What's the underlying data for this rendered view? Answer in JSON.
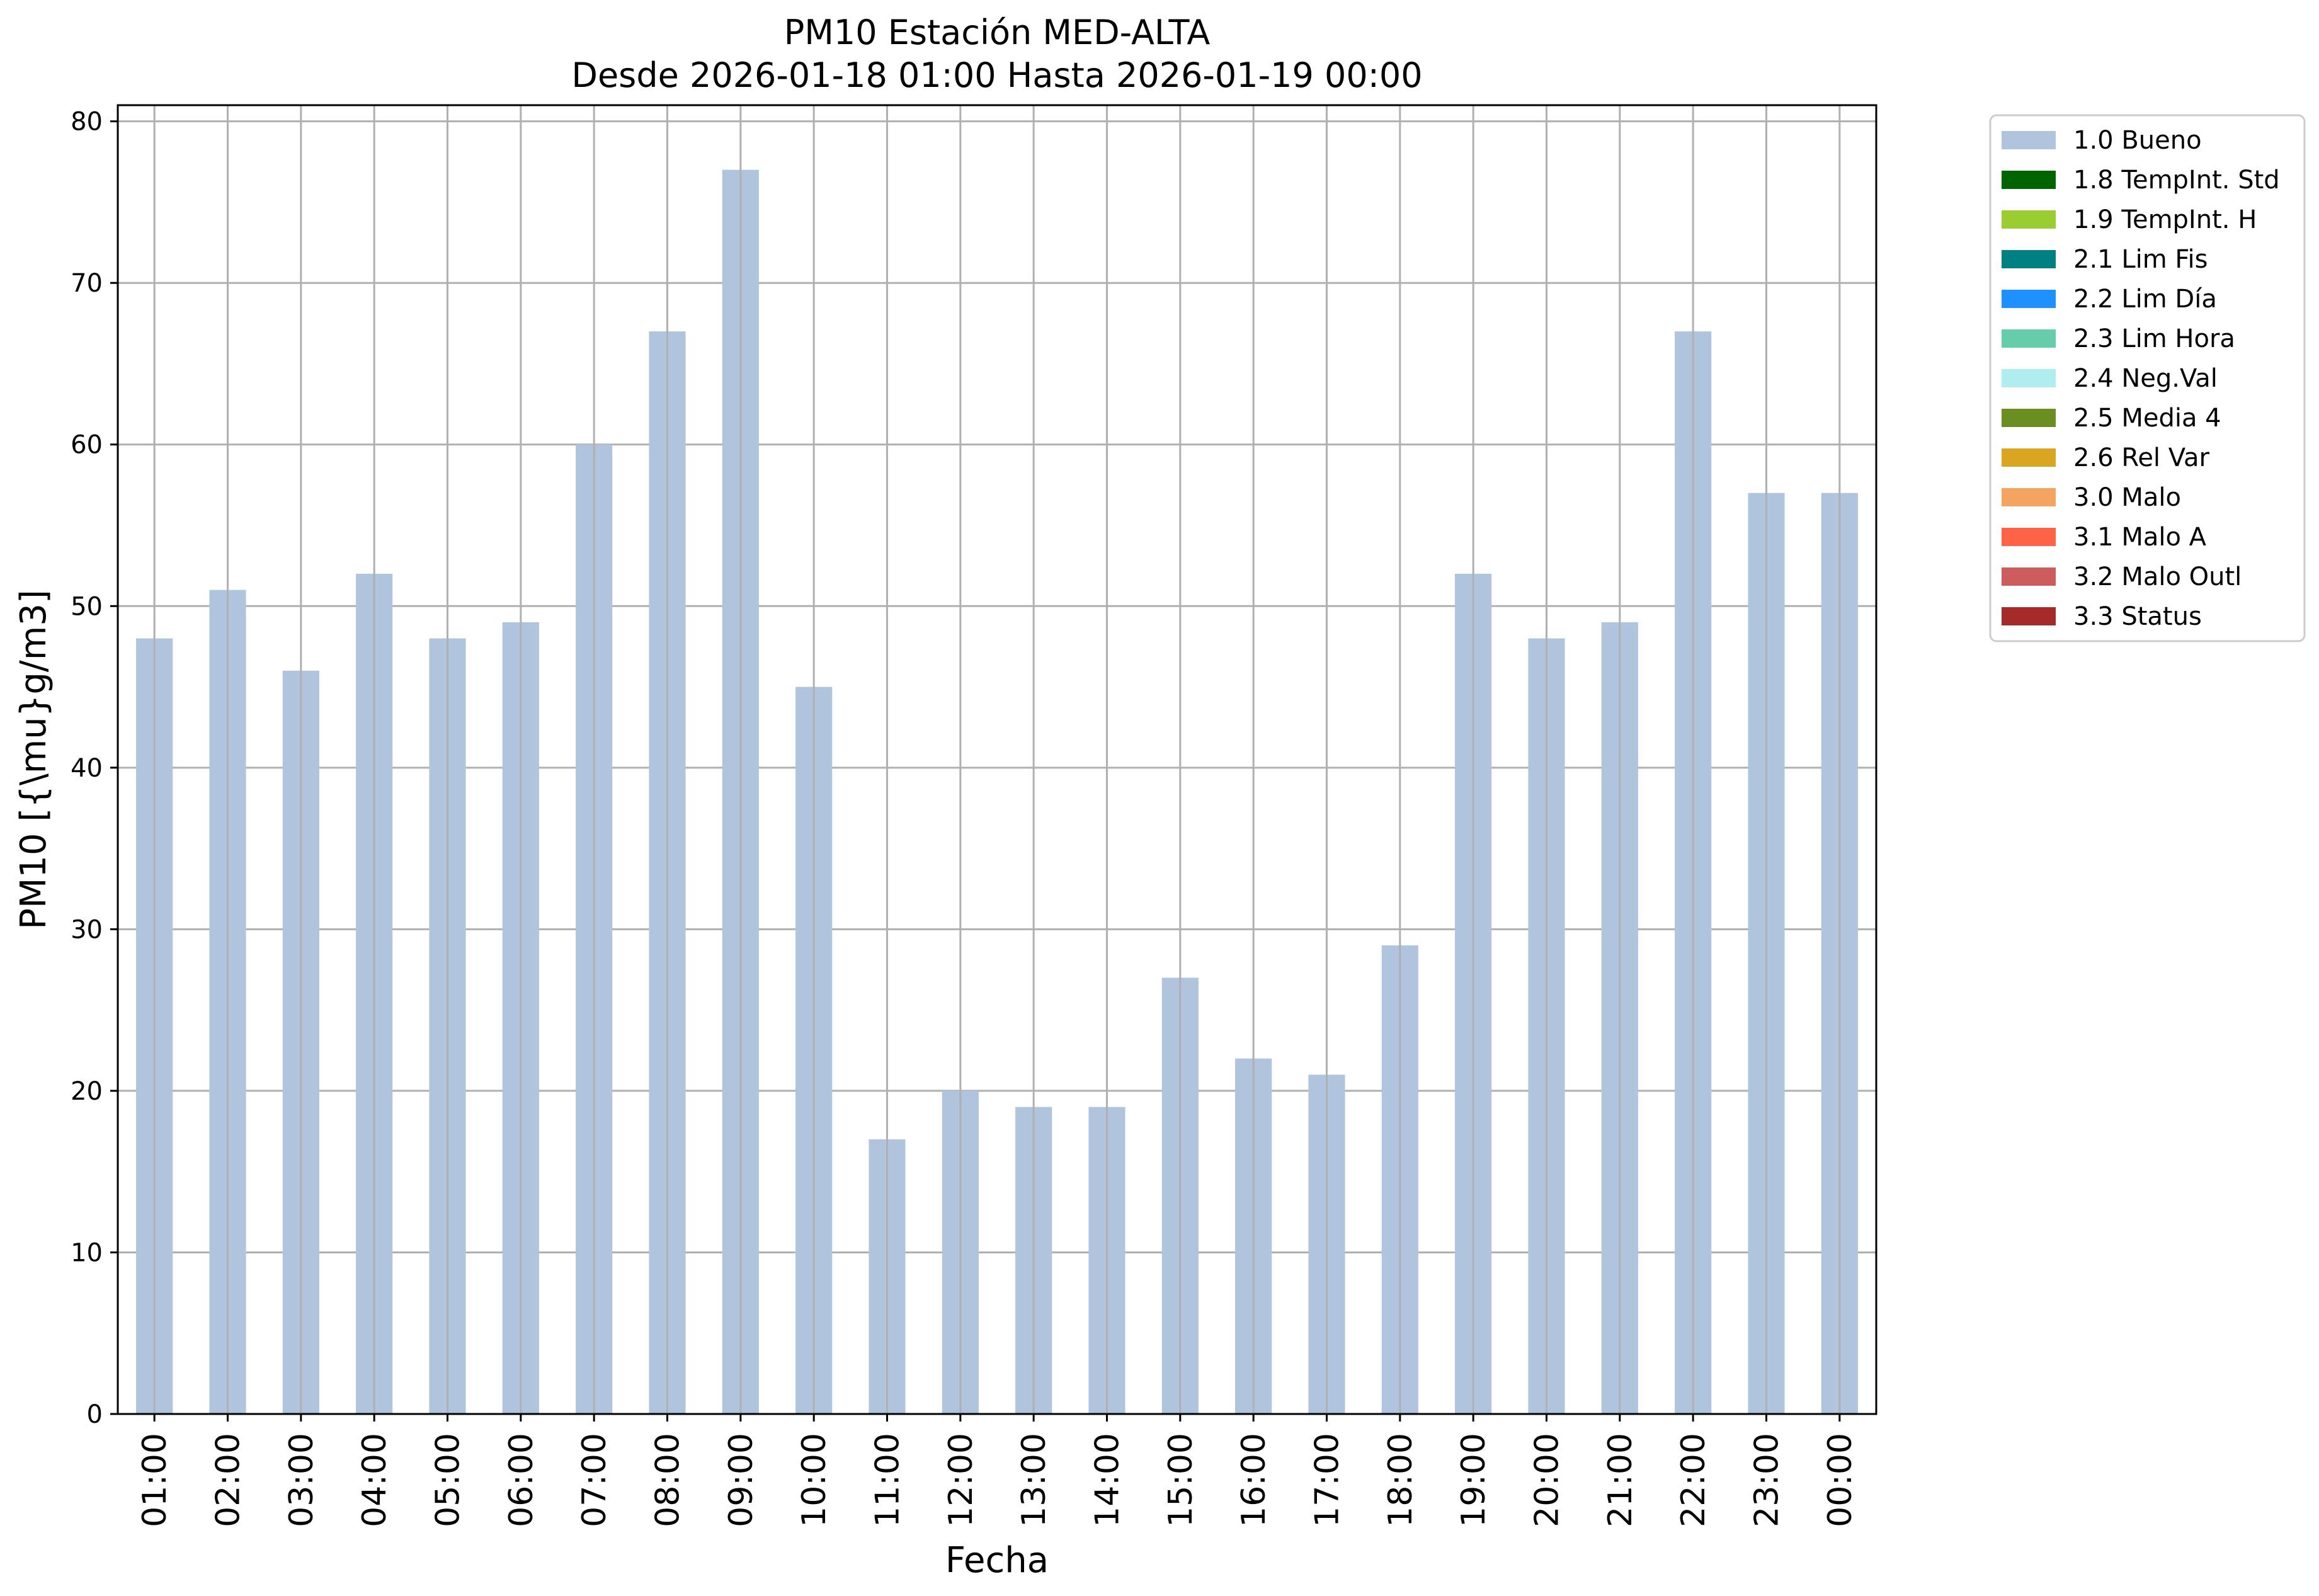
{
  "chart_data": {
    "type": "bar",
    "title": "PM10 Estación MED-ALTA",
    "subtitle": "Desde 2026-01-18 01:00 Hasta 2026-01-19 00:00",
    "xlabel": "Fecha",
    "ylabel": "PM10 [{\\mu}g/m3]",
    "ylim": [
      0,
      81
    ],
    "yticks": [
      0,
      10,
      20,
      30,
      40,
      50,
      60,
      70,
      80
    ],
    "grid": true,
    "legend_position": "outside-top-right",
    "categories": [
      "01:00",
      "02:00",
      "03:00",
      "04:00",
      "05:00",
      "06:00",
      "07:00",
      "08:00",
      "09:00",
      "10:00",
      "11:00",
      "12:00",
      "13:00",
      "14:00",
      "15:00",
      "16:00",
      "17:00",
      "18:00",
      "19:00",
      "20:00",
      "21:00",
      "22:00",
      "23:00",
      "00:00"
    ],
    "series": [
      {
        "name": "1.0 Bueno",
        "color": "#b0c4de",
        "values": [
          48,
          51,
          46,
          52,
          48,
          49,
          60,
          67,
          77,
          45,
          17,
          20,
          19,
          19,
          27,
          22,
          21,
          29,
          52,
          48,
          49,
          67,
          57,
          57
        ]
      }
    ],
    "legend": [
      {
        "label": "1.0 Bueno",
        "color": "#b0c4de"
      },
      {
        "label": "1.8 TempInt. Std",
        "color": "#006400"
      },
      {
        "label": "1.9 TempInt. H",
        "color": "#9acd32"
      },
      {
        "label": "2.1 Lim Fis",
        "color": "#008080"
      },
      {
        "label": "2.2 Lim Día",
        "color": "#1e90ff"
      },
      {
        "label": "2.3 Lim Hora",
        "color": "#66cdaa"
      },
      {
        "label": "2.4 Neg.Val",
        "color": "#afeeee"
      },
      {
        "label": "2.5 Media 4",
        "color": "#6b8e23"
      },
      {
        "label": "2.6 Rel Var",
        "color": "#daa520"
      },
      {
        "label": "3.0 Malo",
        "color": "#f4a460"
      },
      {
        "label": "3.1 Malo A",
        "color": "#ff6347"
      },
      {
        "label": "3.2 Malo Outl",
        "color": "#cd5c5c"
      },
      {
        "label": "3.3 Status",
        "color": "#a52a2a"
      }
    ]
  }
}
